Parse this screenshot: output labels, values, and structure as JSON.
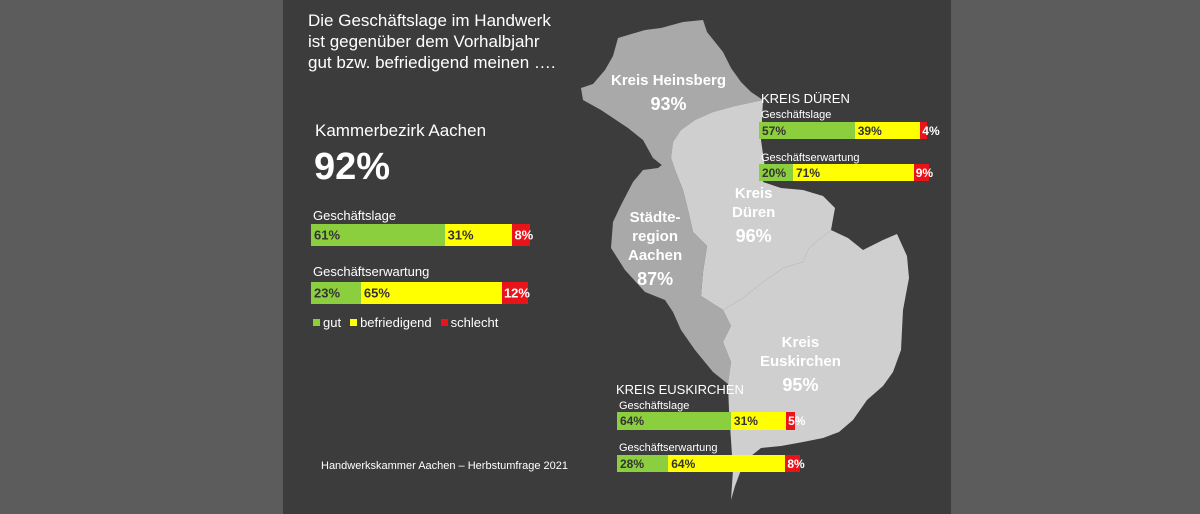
{
  "title_lines": [
    "Die Geschäftslage im Handwerk",
    "ist gegenüber dem Vorhalbjahr",
    "gut bzw. befriedigend meinen …."
  ],
  "kammer": {
    "name": "Kammerbezirk Aachen",
    "value": "92%",
    "lage_label": "Geschäftslage",
    "erwartung_label": "Geschäftserwartung"
  },
  "legend": {
    "gut": "gut",
    "befriedigend": "befriedigend",
    "schlecht": "schlecht"
  },
  "colors": {
    "gut": "#8ccf3e",
    "befriedigend": "#ffff00",
    "schlecht": "#e8141a",
    "panel": "#3c3c3c",
    "map_light": "#cfcfd0",
    "map_mid": "#a9a9aa"
  },
  "regions": {
    "heinsberg": {
      "name": "Kreis Heinsberg",
      "value": "93%"
    },
    "dueren": {
      "name_line1": "Kreis",
      "name_line2": "Düren",
      "value": "96%"
    },
    "aachen": {
      "name_line1": "Städte-",
      "name_line2": "region",
      "name_line3": "Aachen",
      "value": "87%"
    },
    "euskirchen": {
      "name_line1": "Kreis",
      "name_line2": "Euskirchen",
      "value": "95%"
    }
  },
  "dueren_box": {
    "title": "KREIS DÜREN",
    "lage_label": "Geschäftslage",
    "erwartung_label": "Geschäftserwartung"
  },
  "euskirchen_box": {
    "title": "KREIS EUSKIRCHEN",
    "lage_label": "Geschäftslage",
    "erwartung_label": "Geschäftserwartung"
  },
  "footer": "Handwerkskammer Aachen – Herbstumfrage 2021",
  "chart_data": [
    {
      "type": "bar",
      "title": "Kammerbezirk Aachen",
      "stacked": true,
      "categories": [
        "Geschäftslage",
        "Geschäftserwartung"
      ],
      "series": [
        {
          "name": "gut",
          "values": [
            61,
            23
          ]
        },
        {
          "name": "befriedigend",
          "values": [
            31,
            65
          ]
        },
        {
          "name": "schlecht",
          "values": [
            8,
            12
          ]
        }
      ]
    },
    {
      "type": "bar",
      "title": "KREIS DÜREN",
      "stacked": true,
      "categories": [
        "Geschäftslage",
        "Geschäftserwartung"
      ],
      "series": [
        {
          "name": "gut",
          "values": [
            57,
            20
          ]
        },
        {
          "name": "befriedigend",
          "values": [
            39,
            71
          ]
        },
        {
          "name": "schlecht",
          "values": [
            4,
            9
          ]
        }
      ]
    },
    {
      "type": "bar",
      "title": "KREIS EUSKIRCHEN",
      "stacked": true,
      "categories": [
        "Geschäftslage",
        "Geschäftserwartung"
      ],
      "series": [
        {
          "name": "gut",
          "values": [
            64,
            28
          ]
        },
        {
          "name": "befriedigend",
          "values": [
            31,
            64
          ]
        },
        {
          "name": "schlecht",
          "values": [
            5,
            8
          ]
        }
      ]
    }
  ]
}
